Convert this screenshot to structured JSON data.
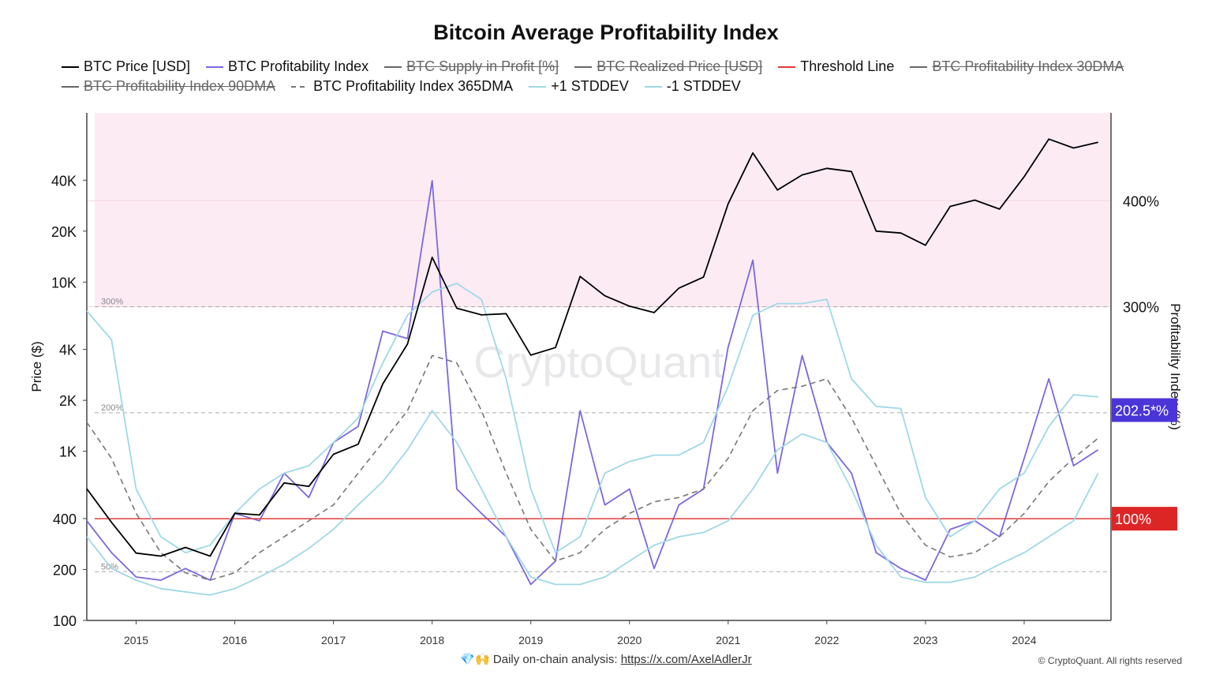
{
  "chart_data": {
    "type": "line",
    "title": "Bitcoin Average Profitability Index",
    "y_label": "Price ($)",
    "y2_label": "Profitability Index (%)",
    "watermark": "CryptoQuant",
    "footer": {
      "text": "💎🙌 Daily on-chain analysis:",
      "link": "https://x.com/AxelAdlerJr",
      "copyright": "© CryptoQuant. All rights reserved"
    },
    "ylog": true,
    "xlim": [
      2014.5,
      2024.88
    ],
    "xticks": [
      2015,
      2016,
      2017,
      2018,
      2019,
      2020,
      2021,
      2022,
      2023,
      2024
    ],
    "ylim": [
      100,
      100000
    ],
    "yticks": [
      100,
      200,
      400,
      {
        "value": 1000,
        "label": "1K"
      },
      {
        "value": 2000,
        "label": "2K"
      },
      {
        "value": 4000,
        "label": "4K"
      },
      {
        "value": 10000,
        "label": "10K"
      },
      {
        "value": 20000,
        "label": "20K"
      },
      {
        "value": 40000,
        "label": "40K"
      }
    ],
    "y2lim": [
      4,
      483
    ],
    "y2ticks": [
      {
        "value": 300,
        "label": "300%"
      },
      {
        "value": 400,
        "label": "400%"
      }
    ],
    "grid": true,
    "zone": {
      "from": 300,
      "color": "#fdebf3"
    },
    "reference_lines": [
      {
        "value": 300,
        "label": "300%"
      },
      {
        "value": 200,
        "label": "200%"
      },
      {
        "value": 50,
        "label": "50%"
      }
    ],
    "x": [
      2014.5,
      2014.75,
      2015,
      2015.25,
      2015.5,
      2015.75,
      2016,
      2016.25,
      2016.5,
      2016.75,
      2017,
      2017.25,
      2017.5,
      2017.75,
      2018,
      2018.25,
      2018.5,
      2018.75,
      2019,
      2019.25,
      2019.5,
      2019.75,
      2020,
      2020.25,
      2020.5,
      2020.75,
      2021,
      2021.25,
      2021.5,
      2021.75,
      2022,
      2022.25,
      2022.5,
      2022.75,
      2023,
      2023.25,
      2023.5,
      2023.75,
      2024,
      2024.25,
      2024.5,
      2024.75
    ],
    "series": [
      {
        "name": "BTC Price [USD]",
        "color": "#000000",
        "axis": "y",
        "values": [
          600,
          380,
          250,
          240,
          270,
          240,
          430,
          420,
          650,
          620,
          960,
          1100,
          2500,
          4300,
          14000,
          7000,
          6400,
          6500,
          3700,
          4100,
          10800,
          8300,
          7200,
          6600,
          9200,
          10700,
          29000,
          58000,
          35000,
          43000,
          47000,
          45000,
          20000,
          19500,
          16500,
          28000,
          30500,
          27000,
          42000,
          70000,
          62000,
          67000
        ]
      },
      {
        "name": "BTC Profitability Index",
        "color": "#7b68e0",
        "axis": "y2",
        "badge": {
          "value": 202.5,
          "label": "202.5*%",
          "color": "#4b35d8"
        },
        "values": [
          98,
          68,
          45,
          42,
          53,
          42,
          105,
          98,
          143,
          120,
          172,
          187,
          277,
          270,
          419,
          128,
          105,
          83,
          38,
          60,
          202,
          113,
          128,
          53,
          113,
          128,
          262,
          344,
          143,
          254,
          172,
          143,
          68,
          53,
          42,
          90,
          98,
          83,
          157,
          232,
          150,
          165
        ]
      },
      {
        "name": "BTC Supply in Profit [%]",
        "color": "#666666",
        "hidden": true
      },
      {
        "name": "BTC Realized Price [USD]",
        "color": "#666666",
        "hidden": true
      },
      {
        "name": "Threshold Line",
        "color": "#e03c3c",
        "axis": "y2",
        "value": 100,
        "badge": {
          "value": 100,
          "label": "100%",
          "color": "#dc2626"
        }
      },
      {
        "name": "BTC Profitability Index 30DMA",
        "color": "#666666",
        "hidden": true
      },
      {
        "name": "BTC Profitability Index 90DMA",
        "color": "#666666",
        "hidden": true
      },
      {
        "name": "BTC Profitability Index 365DMA",
        "color": "#777777",
        "axis": "y2",
        "dash": true,
        "values": [
          191,
          157,
          105,
          68,
          49,
          42,
          49,
          68,
          83,
          98,
          113,
          143,
          172,
          202,
          254,
          247,
          202,
          143,
          90,
          60,
          68,
          90,
          105,
          116,
          120,
          128,
          157,
          202,
          221,
          225,
          232,
          195,
          150,
          105,
          75,
          64,
          68,
          83,
          105,
          135,
          157,
          176
        ]
      },
      {
        "name": "+1 STDDEV",
        "color": "#9fd8e6",
        "axis": "y2",
        "values": [
          296,
          269,
          128,
          83,
          68,
          75,
          105,
          128,
          143,
          150,
          172,
          195,
          247,
          292,
          314,
          322,
          307,
          232,
          128,
          68,
          83,
          143,
          154,
          160,
          160,
          172,
          225,
          292,
          303,
          303,
          307,
          232,
          206,
          204,
          120,
          83,
          98,
          128,
          143,
          187,
          217,
          215
        ]
      },
      {
        "name": "-1 STDDEV",
        "color": "#9fd8e6",
        "axis": "y2",
        "values": [
          83,
          53,
          42,
          34,
          31,
          28,
          34,
          45,
          57,
          72,
          90,
          113,
          135,
          165,
          202,
          172,
          128,
          83,
          45,
          38,
          38,
          45,
          60,
          75,
          83,
          87,
          98,
          128,
          165,
          180,
          172,
          128,
          75,
          45,
          40,
          40,
          45,
          57,
          68,
          83,
          98,
          143
        ]
      }
    ]
  }
}
